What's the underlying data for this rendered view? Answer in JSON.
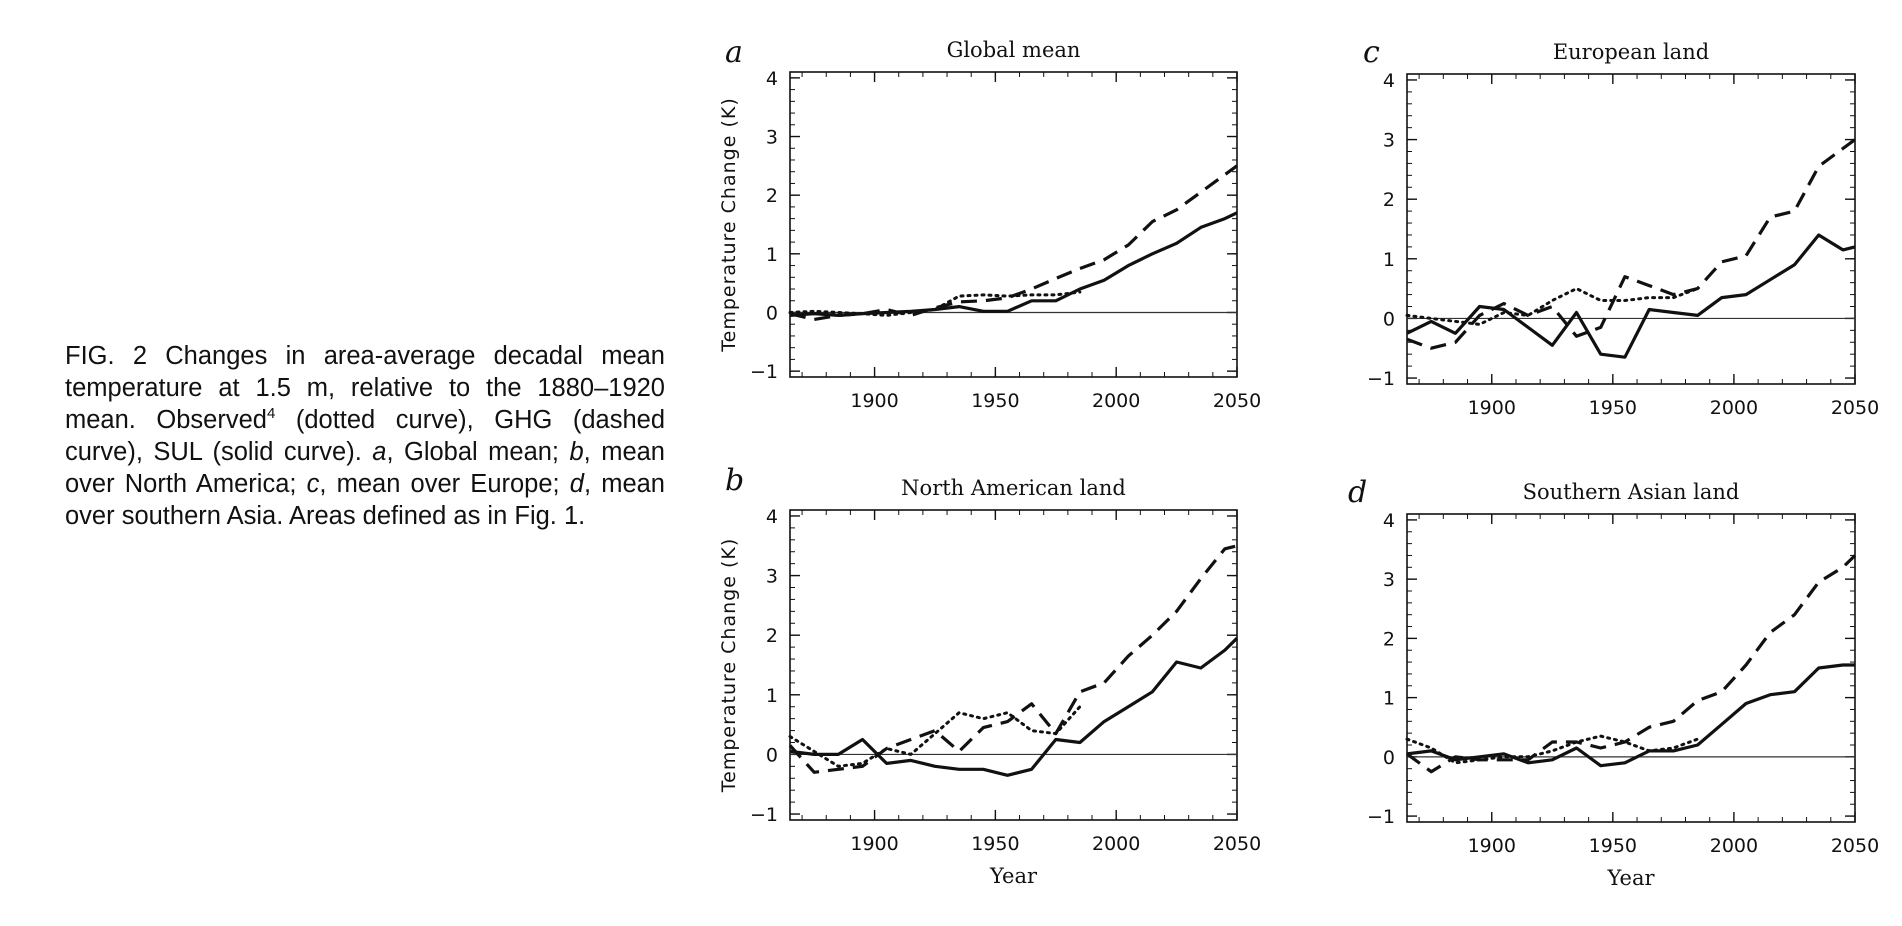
{
  "caption": {
    "part1": "FIG. 2 Changes in area-average decadal mean temperature at 1.5 m, relative to the 1880–1920 mean. Observed",
    "sup": "4",
    "part2": " (dotted curve), GHG (dashed curve), SUL (solid curve). ",
    "a": "a",
    "a_text": ", Global mean; ",
    "b": "b",
    "b_text": ", mean over North America; ",
    "c": "c",
    "c_text": ", mean over Europe; ",
    "d": "d",
    "d_text": ", mean over southern Asia. Areas defined as in Fig. 1."
  },
  "colors": {
    "ink": "#111111",
    "zero_line": "#333333"
  },
  "chart_data": [
    {
      "panel": "a",
      "type": "line",
      "title": "Global mean",
      "ylabel": "Temperature Change (K)",
      "xlabel": "",
      "xlim": [
        1865,
        2050
      ],
      "ylim": [
        -1.1,
        4.1
      ],
      "xticks": [
        1900,
        1950,
        2000,
        2050
      ],
      "yticks": [
        -1,
        0,
        1,
        2,
        3,
        4
      ],
      "series": [
        {
          "name": "Observed",
          "style": "dotted",
          "x": [
            1865,
            1875,
            1885,
            1895,
            1905,
            1915,
            1925,
            1935,
            1945,
            1955,
            1965,
            1975,
            1985
          ],
          "y": [
            0.0,
            0.02,
            0.0,
            -0.02,
            -0.05,
            0.0,
            0.05,
            0.28,
            0.3,
            0.28,
            0.3,
            0.3,
            0.35
          ]
        },
        {
          "name": "GHG",
          "style": "dashed",
          "x": [
            1865,
            1875,
            1885,
            1895,
            1905,
            1915,
            1925,
            1935,
            1945,
            1955,
            1965,
            1975,
            1985,
            1995,
            2005,
            2015,
            2025,
            2035,
            2045,
            2050
          ],
          "y": [
            -0.02,
            -0.12,
            -0.05,
            -0.02,
            0.05,
            -0.05,
            0.08,
            0.18,
            0.2,
            0.25,
            0.4,
            0.58,
            0.75,
            0.9,
            1.15,
            1.55,
            1.75,
            2.05,
            2.35,
            2.5
          ]
        },
        {
          "name": "SUL",
          "style": "solid",
          "x": [
            1865,
            1875,
            1885,
            1895,
            1905,
            1915,
            1925,
            1935,
            1945,
            1955,
            1965,
            1975,
            1985,
            1995,
            2005,
            2015,
            2025,
            2035,
            2045,
            2050
          ],
          "y": [
            -0.05,
            -0.02,
            -0.05,
            -0.02,
            0.0,
            0.02,
            0.05,
            0.1,
            0.02,
            0.02,
            0.2,
            0.2,
            0.4,
            0.55,
            0.8,
            1.0,
            1.18,
            1.45,
            1.6,
            1.7
          ]
        }
      ]
    },
    {
      "panel": "b",
      "type": "line",
      "title": "North American land",
      "ylabel": "Temperature Change (K)",
      "xlabel": "Year",
      "xlim": [
        1865,
        2050
      ],
      "ylim": [
        -1.1,
        4.1
      ],
      "xticks": [
        1900,
        1950,
        2000,
        2050
      ],
      "yticks": [
        -1,
        0,
        1,
        2,
        3,
        4
      ],
      "series": [
        {
          "name": "Observed",
          "style": "dotted",
          "x": [
            1865,
            1875,
            1885,
            1895,
            1905,
            1915,
            1925,
            1935,
            1945,
            1955,
            1965,
            1975,
            1985
          ],
          "y": [
            0.3,
            0.05,
            -0.2,
            -0.15,
            0.1,
            0.0,
            0.35,
            0.7,
            0.6,
            0.7,
            0.4,
            0.35,
            0.8
          ]
        },
        {
          "name": "GHG",
          "style": "dashed",
          "x": [
            1865,
            1875,
            1885,
            1895,
            1905,
            1915,
            1925,
            1935,
            1945,
            1955,
            1965,
            1975,
            1985,
            1995,
            2005,
            2015,
            2025,
            2035,
            2045,
            2050
          ],
          "y": [
            0.15,
            -0.3,
            -0.25,
            -0.2,
            0.1,
            0.25,
            0.4,
            0.05,
            0.45,
            0.55,
            0.85,
            0.35,
            1.05,
            1.2,
            1.65,
            2.0,
            2.4,
            2.95,
            3.45,
            3.5
          ]
        },
        {
          "name": "SUL",
          "style": "solid",
          "x": [
            1865,
            1875,
            1885,
            1895,
            1905,
            1915,
            1925,
            1935,
            1945,
            1955,
            1965,
            1975,
            1985,
            1995,
            2005,
            2015,
            2025,
            2035,
            2045,
            2050
          ],
          "y": [
            0.05,
            0.0,
            0.0,
            0.25,
            -0.15,
            -0.1,
            -0.2,
            -0.25,
            -0.25,
            -0.35,
            -0.25,
            0.25,
            0.2,
            0.55,
            0.8,
            1.05,
            1.55,
            1.45,
            1.75,
            1.95
          ]
        }
      ]
    },
    {
      "panel": "c",
      "type": "line",
      "title": "European land",
      "ylabel": "",
      "xlabel": "",
      "xlim": [
        1865,
        2050
      ],
      "ylim": [
        -1.1,
        4.1
      ],
      "xticks": [
        1900,
        1950,
        2000,
        2050
      ],
      "yticks": [
        -1,
        0,
        1,
        2,
        3,
        4
      ],
      "series": [
        {
          "name": "Observed",
          "style": "dotted",
          "x": [
            1865,
            1875,
            1885,
            1895,
            1905,
            1915,
            1925,
            1935,
            1945,
            1955,
            1965,
            1975,
            1985
          ],
          "y": [
            0.05,
            0.0,
            -0.05,
            -0.1,
            0.1,
            0.05,
            0.3,
            0.5,
            0.3,
            0.3,
            0.35,
            0.35,
            0.5
          ]
        },
        {
          "name": "GHG",
          "style": "dashed",
          "x": [
            1865,
            1875,
            1885,
            1895,
            1905,
            1915,
            1925,
            1935,
            1945,
            1955,
            1965,
            1975,
            1985,
            1995,
            2005,
            2015,
            2025,
            2035,
            2045,
            2050
          ],
          "y": [
            -0.35,
            -0.5,
            -0.4,
            0.05,
            0.25,
            0.05,
            0.2,
            -0.3,
            -0.15,
            0.7,
            0.55,
            0.4,
            0.5,
            0.95,
            1.05,
            1.7,
            1.8,
            2.55,
            2.85,
            3.0
          ]
        },
        {
          "name": "SUL",
          "style": "solid",
          "x": [
            1865,
            1875,
            1885,
            1895,
            1905,
            1915,
            1925,
            1935,
            1945,
            1955,
            1965,
            1975,
            1985,
            1995,
            2005,
            2015,
            2025,
            2035,
            2045,
            2050
          ],
          "y": [
            -0.25,
            -0.05,
            -0.25,
            0.2,
            0.15,
            -0.15,
            -0.45,
            0.1,
            -0.6,
            -0.65,
            0.15,
            0.1,
            0.05,
            0.35,
            0.4,
            0.65,
            0.9,
            1.4,
            1.15,
            1.2
          ]
        }
      ]
    },
    {
      "panel": "d",
      "type": "line",
      "title": "Southern Asian land",
      "ylabel": "",
      "xlabel": "Year",
      "xlim": [
        1865,
        2050
      ],
      "ylim": [
        -1.1,
        4.1
      ],
      "xticks": [
        1900,
        1950,
        2000,
        2050
      ],
      "yticks": [
        -1,
        0,
        1,
        2,
        3,
        4
      ],
      "series": [
        {
          "name": "Observed",
          "style": "dotted",
          "x": [
            1865,
            1875,
            1885,
            1895,
            1905,
            1915,
            1925,
            1935,
            1945,
            1955,
            1965,
            1975,
            1985
          ],
          "y": [
            0.3,
            0.15,
            -0.1,
            -0.05,
            0.0,
            0.0,
            0.1,
            0.25,
            0.35,
            0.25,
            0.1,
            0.15,
            0.3
          ]
        },
        {
          "name": "GHG",
          "style": "dashed",
          "x": [
            1865,
            1875,
            1885,
            1895,
            1905,
            1915,
            1925,
            1935,
            1945,
            1955,
            1965,
            1975,
            1985,
            1995,
            2005,
            2015,
            2025,
            2035,
            2045,
            2050
          ],
          "y": [
            0.05,
            -0.25,
            0.0,
            -0.05,
            -0.05,
            -0.05,
            0.25,
            0.25,
            0.15,
            0.25,
            0.5,
            0.6,
            0.95,
            1.1,
            1.55,
            2.1,
            2.4,
            2.95,
            3.2,
            3.4
          ]
        },
        {
          "name": "SUL",
          "style": "solid",
          "x": [
            1865,
            1875,
            1885,
            1895,
            1905,
            1915,
            1925,
            1935,
            1945,
            1955,
            1965,
            1975,
            1985,
            1995,
            2005,
            2015,
            2025,
            2035,
            2045,
            2050
          ],
          "y": [
            0.05,
            0.1,
            -0.05,
            0.0,
            0.05,
            -0.1,
            -0.05,
            0.15,
            -0.15,
            -0.1,
            0.1,
            0.1,
            0.2,
            0.55,
            0.9,
            1.05,
            1.1,
            1.5,
            1.55,
            1.55
          ]
        }
      ]
    }
  ]
}
